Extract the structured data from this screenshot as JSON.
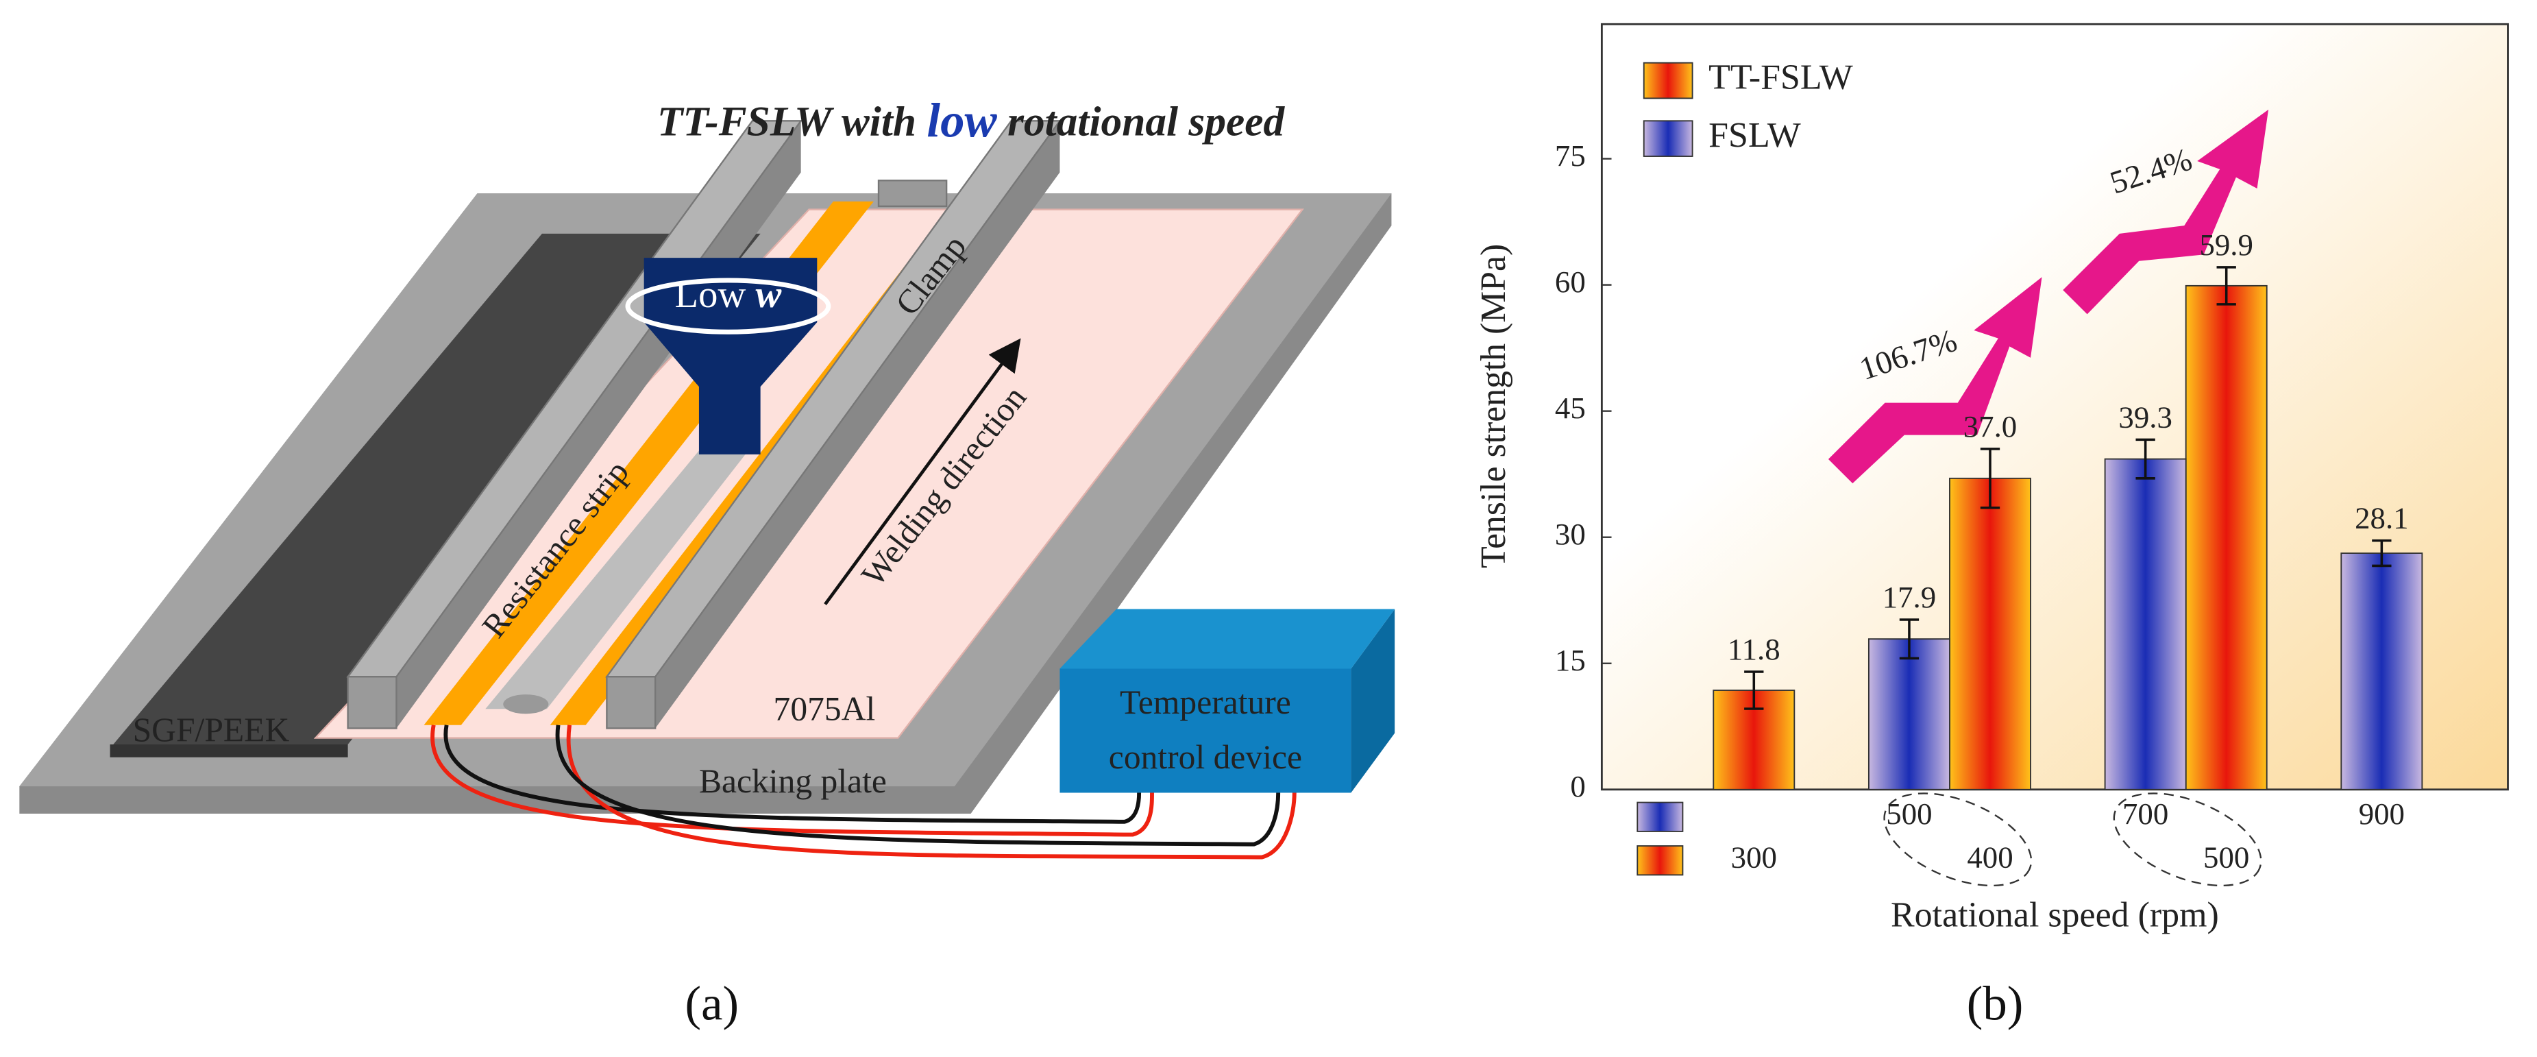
{
  "diagram": {
    "title": {
      "part1": "TT-FSLW with ",
      "part2": "low",
      "part3": " rotational speed"
    },
    "tool_label": {
      "text": "Low ",
      "symbol": "w"
    },
    "clamp": "Clamp",
    "welding_direction": "Welding direction",
    "resistance_strip": "Resistance strip",
    "sgf_peek": "SGF/PEEK",
    "aluminium": "7075Al",
    "backing_plate": "Backing plate",
    "device": {
      "line1": "Temperature",
      "line2": "control device"
    },
    "panel_label": "(a)"
  },
  "chart_data": {
    "type": "bar",
    "panel_label": "(b)",
    "x_label": "Rotational speed (rpm)",
    "y_label": "Tensile strength (MPa)",
    "ylim": [
      0,
      91
    ],
    "yticks": [
      0,
      15,
      30,
      45,
      60,
      75
    ],
    "legend_position": "upper left",
    "annotations": [
      {
        "text": "106.7%"
      },
      {
        "text": "52.4%"
      }
    ],
    "series": [
      {
        "name": "TT-FSLW",
        "color": "#e8160c",
        "categories": [
          "300",
          "400",
          "500",
          null
        ],
        "values": [
          11.8,
          37.0,
          59.9,
          null
        ],
        "value_labels": [
          "11.8",
          "37.0",
          "59.9",
          null
        ],
        "errors": [
          2.2,
          3.5,
          2.2,
          null
        ]
      },
      {
        "name": "FSLW",
        "color": "#1a2db5",
        "categories": [
          null,
          "500",
          "700",
          "900"
        ],
        "values": [
          null,
          17.9,
          39.3,
          28.1
        ],
        "value_labels": [
          null,
          "17.9",
          "39.3",
          "28.1"
        ],
        "errors": [
          null,
          2.3,
          2.3,
          1.5
        ]
      }
    ]
  }
}
